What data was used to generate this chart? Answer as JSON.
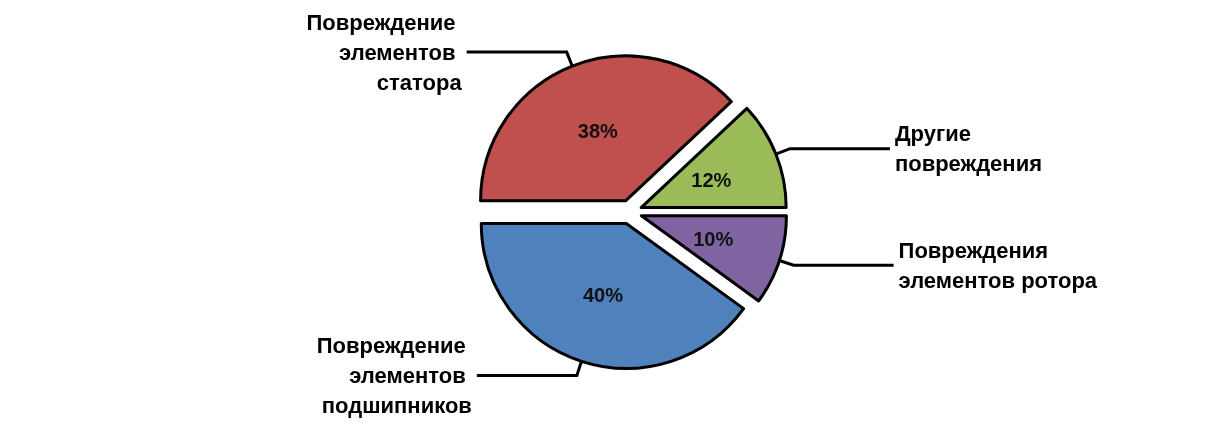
{
  "chart_data": {
    "type": "pie",
    "categories": [
      "Повреждение элементов статора",
      "Другие повреждения",
      "Повреждения элементов ротора",
      "Повреждение элементов подшипников"
    ],
    "values": [
      38,
      12,
      10,
      40
    ],
    "colors": [
      "#c0504d",
      "#9bbb59",
      "#8064a2",
      "#4f81bd"
    ],
    "value_labels": [
      "38%",
      "12%",
      "10%",
      "40%"
    ]
  }
}
